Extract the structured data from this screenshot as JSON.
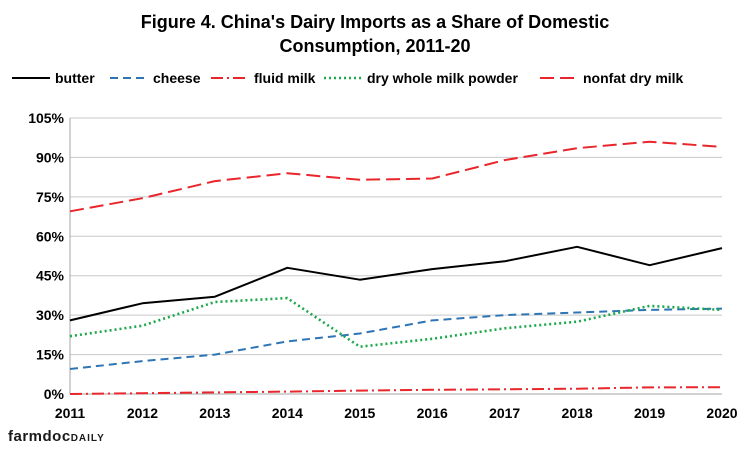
{
  "chart_data": {
    "type": "line",
    "title_line1": "Figure 4.  China's Dairy Imports as a Share of Domestic",
    "title_line2": "Consumption, 2011-20",
    "xlabel": "",
    "ylabel": "",
    "x": [
      "2011",
      "2012",
      "2013",
      "2014",
      "2015",
      "2016",
      "2017",
      "2018",
      "2019",
      "2020"
    ],
    "ylim": [
      0,
      105
    ],
    "yticks": [
      0,
      15,
      30,
      45,
      60,
      75,
      90,
      105
    ],
    "ytick_labels": [
      "0%",
      "15%",
      "30%",
      "45%",
      "60%",
      "75%",
      "90%",
      "105%"
    ],
    "grid": "horizontal",
    "legend_position": "top",
    "series": [
      {
        "name": "butter",
        "color": "#000000",
        "dash": "solid",
        "values": [
          28,
          34.5,
          37,
          48,
          43.5,
          47.5,
          50.5,
          56,
          49,
          55.5
        ]
      },
      {
        "name": "cheese",
        "color": "#2e75b6",
        "dash": "dash",
        "values": [
          9.5,
          12.5,
          15,
          20,
          23,
          28,
          30,
          31,
          32,
          32.5
        ]
      },
      {
        "name": "fluid milk",
        "color": "#e8262b",
        "dash": "dashdot",
        "values": [
          0,
          0.3,
          0.6,
          0.9,
          1.3,
          1.6,
          1.8,
          2.0,
          2.5,
          2.6
        ]
      },
      {
        "name": "dry whole milk powder",
        "color": "#1aa84a",
        "dash": "dot",
        "values": [
          22,
          26,
          35,
          36.5,
          18,
          21,
          25,
          27.5,
          33.5,
          32
        ]
      },
      {
        "name": "nonfat dry milk",
        "color": "#e8262b",
        "dash": "longdash",
        "values": [
          69.5,
          74.5,
          81,
          84,
          81.5,
          82,
          89,
          93.5,
          96,
          94
        ]
      }
    ]
  },
  "branding": {
    "logo_main": "farmdoc",
    "logo_suffix": "DAILY"
  }
}
